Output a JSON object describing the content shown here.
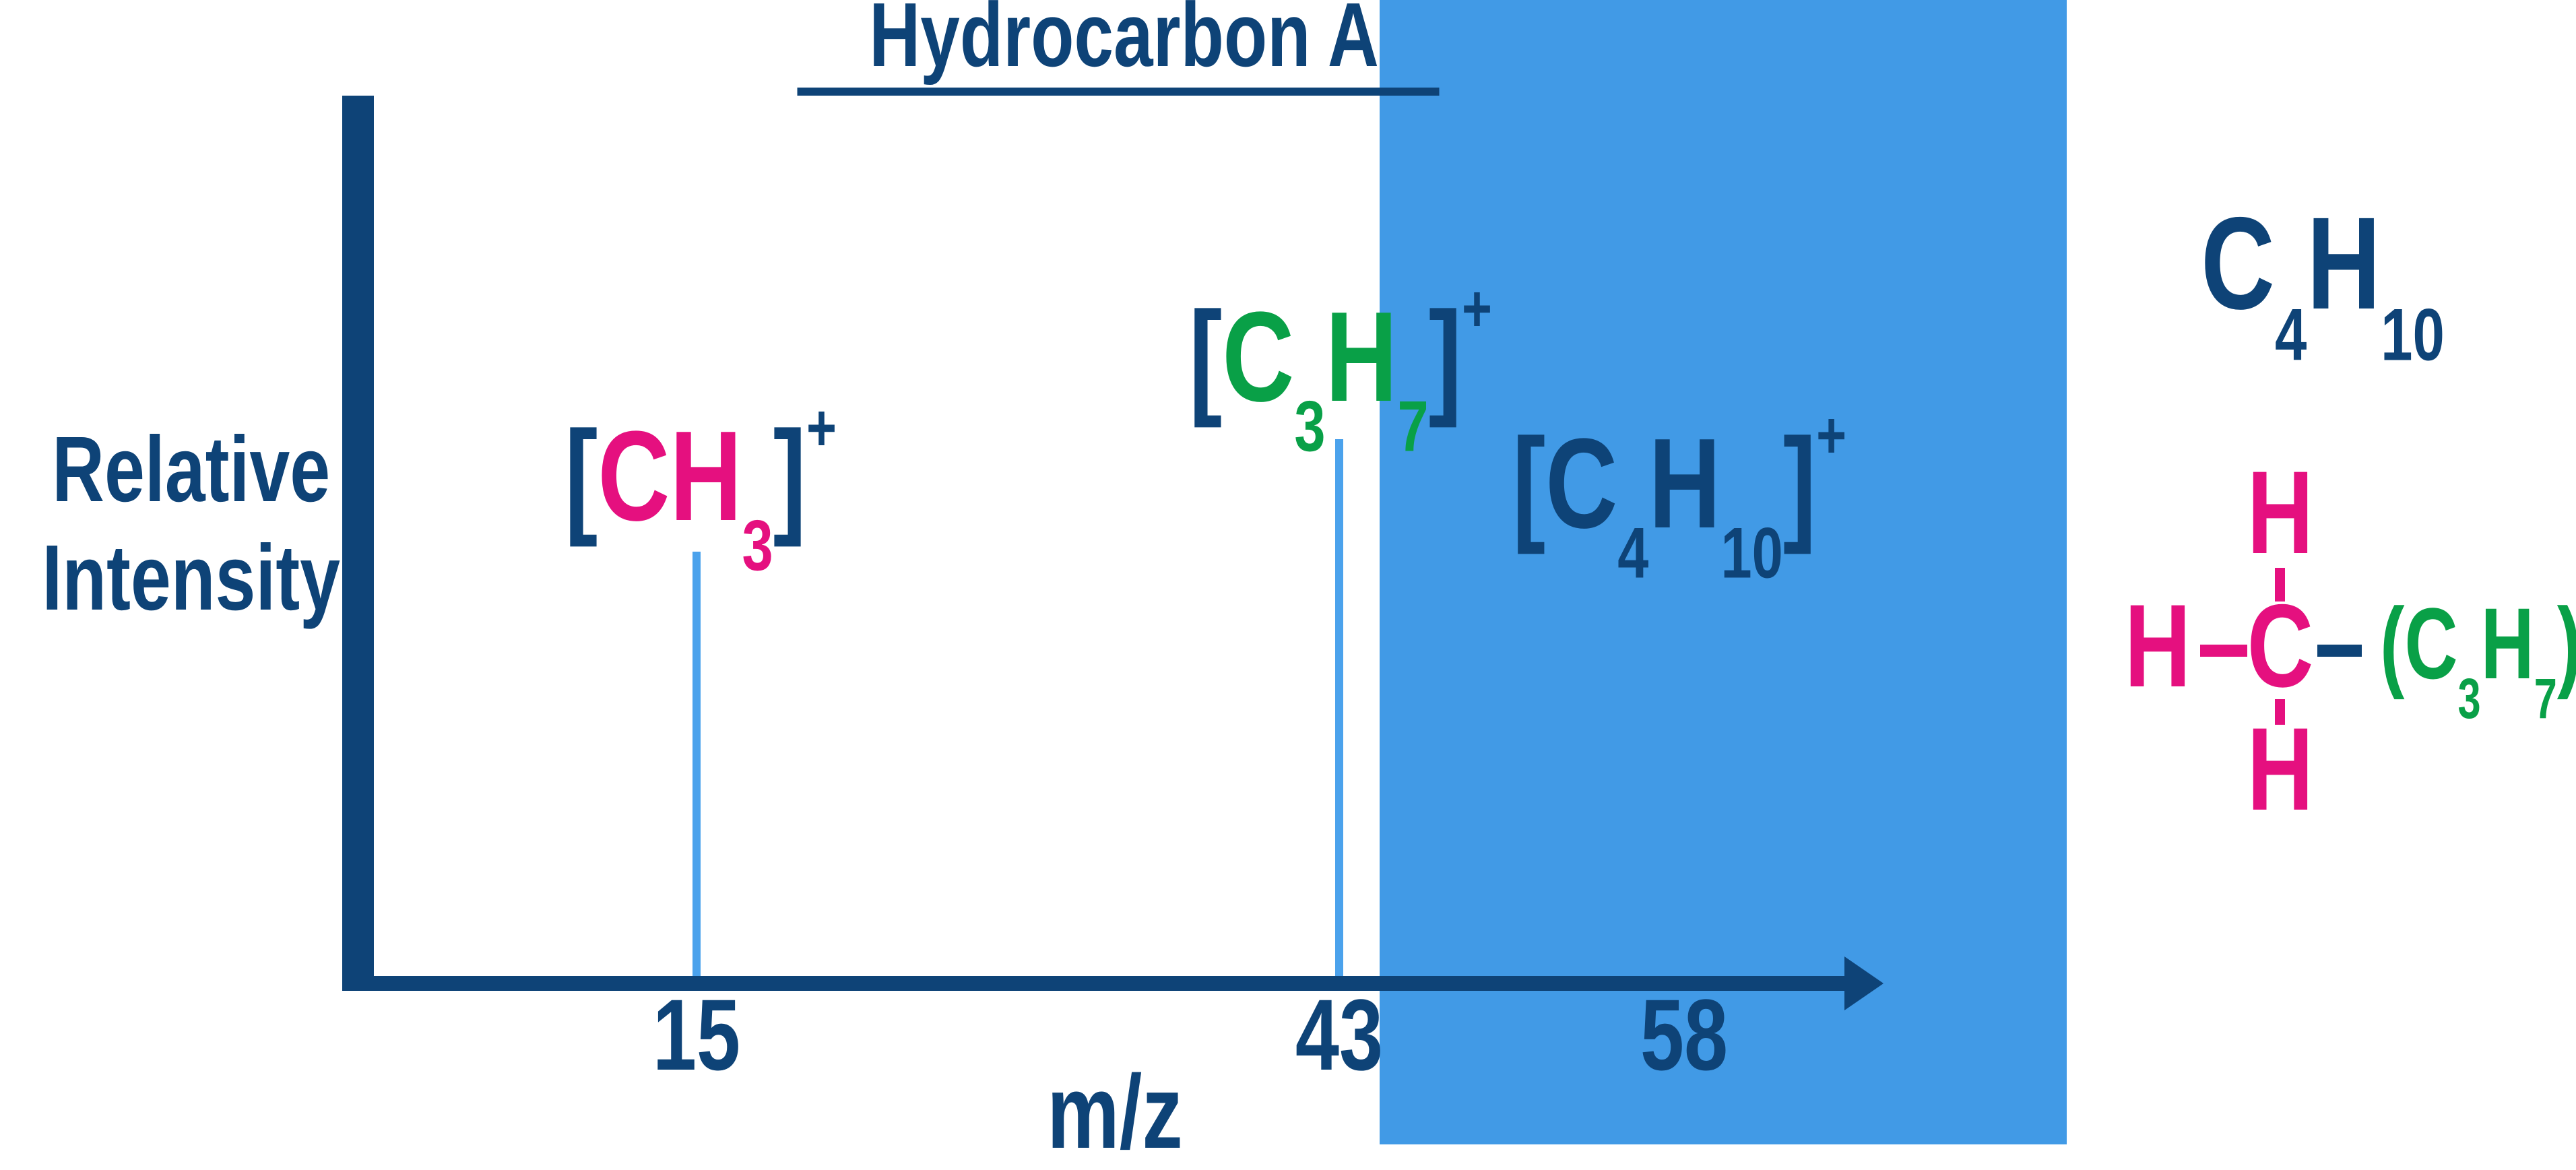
{
  "chart_data": {
    "type": "bar",
    "title": "Hydrocarbon A",
    "xlabel": "m/z",
    "ylabel": "Relative Intensity",
    "x_ticks": [
      "15",
      "43",
      "58"
    ],
    "xlim": [
      0,
      66
    ],
    "grid": false,
    "peaks": [
      {
        "mz": 15,
        "relative_intensity": 79,
        "ion": "[CH3]+",
        "line_drawn": true
      },
      {
        "mz": 43,
        "relative_intensity": 100,
        "ion": "[C3H7]+",
        "line_drawn": true
      },
      {
        "mz": 58,
        "relative_intensity": 0,
        "ion": "[C4H10]+",
        "line_drawn": false
      }
    ],
    "highlight_band": {
      "from_mz": 45,
      "to_end_of_axis": true,
      "note": "blue band over molecular-ion region"
    }
  },
  "title": "Hydrocarbon A",
  "y_axis_label": {
    "line1": "Relative",
    "line2": "Intensity"
  },
  "x_axis_label": "m/z",
  "ion_labels": {
    "ch3": {
      "open": "[",
      "formula": "CH",
      "sub": "3",
      "close": "]",
      "charge": "+"
    },
    "c3h7": {
      "open": "[",
      "c": "C",
      "c_sub": "3",
      "h": "H",
      "h_sub": "7",
      "close": "]",
      "charge": "+"
    },
    "c4h10": {
      "open": "[",
      "c": "C",
      "c_sub": "4",
      "h": "H",
      "h_sub": "10",
      "close": "]",
      "charge": "+"
    }
  },
  "molecule": {
    "formula": {
      "c": "C",
      "c_sub": "4",
      "h": "H",
      "h_sub": "10"
    },
    "structure": {
      "top_h": "H",
      "left_h": "H",
      "center_c": "C",
      "bottom_h": "H",
      "group": {
        "open": "(",
        "c": "C",
        "c_sub": "3",
        "h": "H",
        "h_sub": "7",
        "close": ")"
      }
    }
  },
  "colors": {
    "navy": "#0e4377",
    "pink": "#e5107f",
    "green": "#09a047",
    "highlight_blue": "#419ae6",
    "peak_blue": "#4ba2ec",
    "background": "#ffffff"
  }
}
